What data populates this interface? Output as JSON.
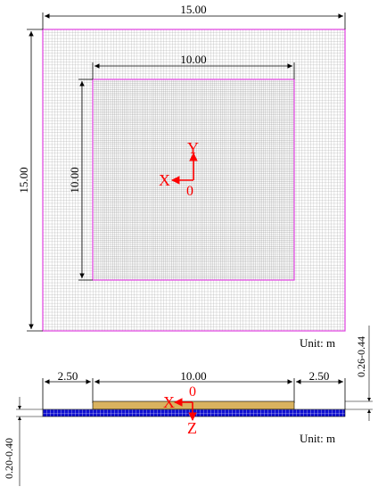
{
  "plan_view": {
    "outer_width_label": "15.00",
    "outer_height_label": "15.00",
    "inner_width_label": "10.00",
    "inner_height_label": "10.00",
    "axis_y_label": "Y",
    "axis_x_label": "X",
    "origin_label": "0",
    "unit_label": "Unit: m",
    "colors": {
      "outer_mesh": "#8c8c8c",
      "inner_mesh": "#6e6e6e",
      "boundary": "#e040e0",
      "axis": "#ff0000",
      "dimension": "#000000"
    }
  },
  "section_view": {
    "left_width_label": "2.50",
    "center_width_label": "10.00",
    "right_width_label": "2.50",
    "top_thickness_label": "0.26-0.44",
    "bottom_thickness_label": "0.20-0.40",
    "axis_x_label": "X",
    "axis_z_label": "Z",
    "origin_label": "0",
    "unit_label": "Unit: m",
    "colors": {
      "layer_fill": "#d9b25f",
      "mesh_fill": "#1010d0",
      "axis": "#ff0000"
    }
  }
}
